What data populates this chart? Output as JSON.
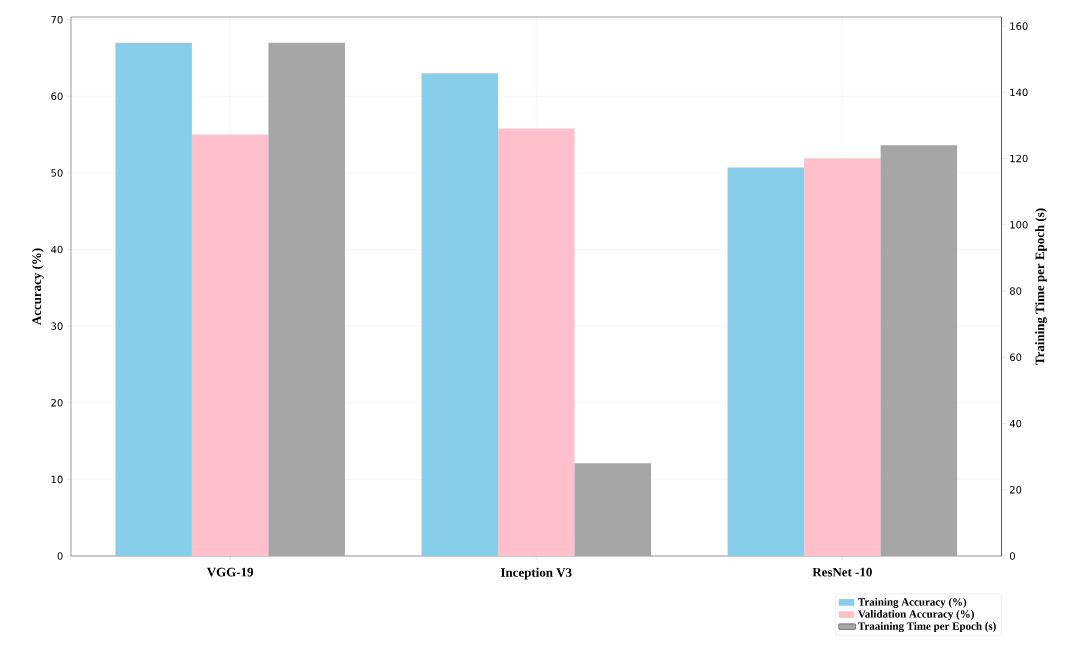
{
  "chart_data": {
    "type": "bar",
    "categories": [
      "VGG-19",
      "Inception V3",
      "ResNet -10"
    ],
    "ylabel": "Accuracy (%)",
    "y2label": "Training Time per Epoch (s)",
    "series": [
      {
        "name": "Training Accuracy (%)",
        "color": "#87ceeb",
        "values": [
          67,
          63,
          50.7
        ]
      },
      {
        "name": "Validation Accuracy (%)",
        "color": "#ffc0cb",
        "values": [
          55,
          55.8,
          51.9
        ]
      },
      {
        "name": "Traaining Time per Epoch (s)",
        "color": "#a6a6a6",
        "values": [
          155,
          28,
          124
        ],
        "axis": "y2"
      }
    ],
    "ylim": [
      0,
      70.35
    ],
    "yticks": [
      0,
      10,
      20,
      30,
      40,
      50,
      60,
      70
    ],
    "y2lim": [
      0,
      162.75
    ],
    "y2ticks": [
      0,
      20,
      40,
      60,
      80,
      100,
      120,
      140,
      160
    ],
    "grid": true,
    "legend": "bottom right"
  }
}
